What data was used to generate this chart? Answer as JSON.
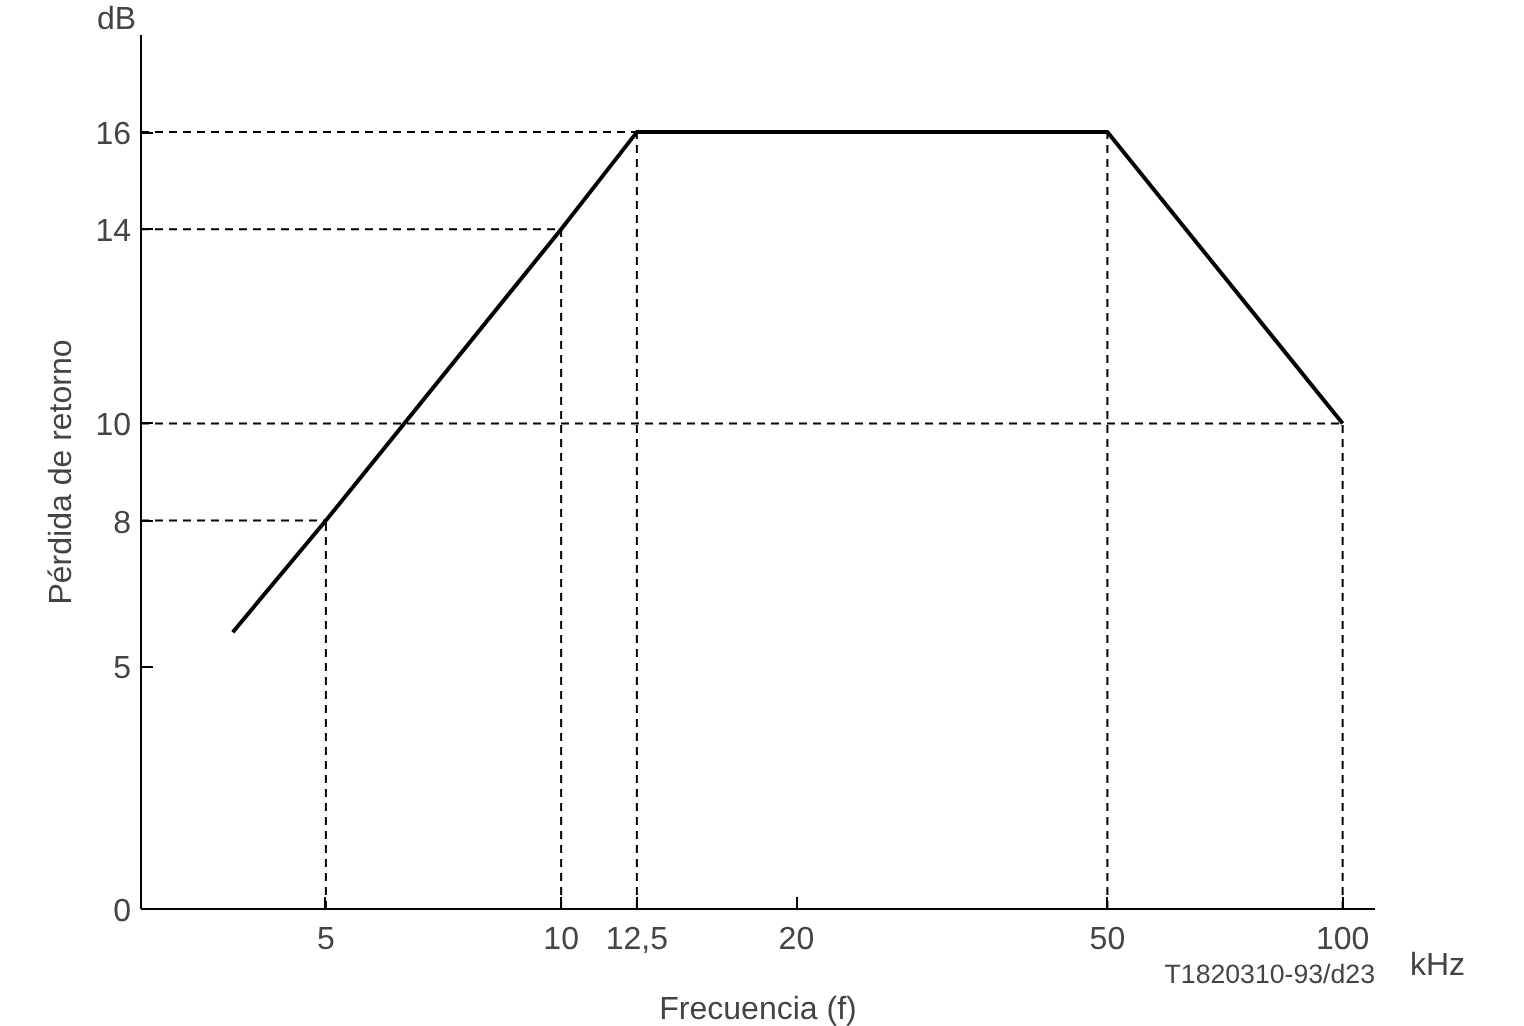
{
  "chart_data": {
    "type": "line",
    "xlabel": "Frecuencia (f)",
    "ylabel": "Pérdida de retorno",
    "annotations": [
      "dB",
      "kHz",
      "T1820310-93/d23"
    ],
    "x": [
      3.8,
      5,
      10,
      12.5,
      50,
      100
    ],
    "series": [
      {
        "color": "#000000",
        "values": [
          5.7,
          8,
          14,
          16,
          16,
          10
        ]
      }
    ],
    "log": "x",
    "xlim": [
      2.9,
      110
    ],
    "ylim": [
      0,
      18
    ],
    "xticks": [
      5,
      10,
      {
        "value": 12.5,
        "label": "12,5"
      },
      20,
      50,
      100
    ],
    "yticks": [
      0,
      5,
      8,
      10,
      14,
      16
    ],
    "ref_lines": [
      {
        "axis": "y",
        "value": 16,
        "line_style": "dashed"
      },
      {
        "axis": "y",
        "value": 14,
        "line_style": "dashed"
      },
      {
        "axis": "y",
        "value": 10,
        "line_style": "dashed"
      },
      {
        "axis": "y",
        "value": 8,
        "line_style": "dashed"
      },
      {
        "axis": "x",
        "value": 5,
        "line_style": "dashed"
      },
      {
        "axis": "x",
        "value": 10,
        "line_style": "dashed"
      },
      {
        "axis": "x",
        "value": 12.5,
        "line_style": "dashed"
      },
      {
        "axis": "x",
        "value": 50,
        "line_style": "dashed"
      },
      {
        "axis": "x",
        "value": 100,
        "line_style": "dashed"
      }
    ],
    "grid": false,
    "marker": "none",
    "line_style": "solid"
  }
}
